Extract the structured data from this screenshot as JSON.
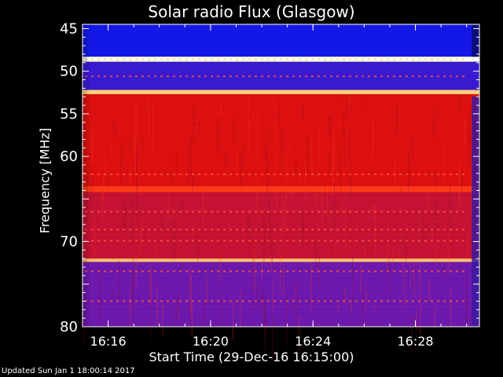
{
  "title": "Solar radio Flux (Glasgow)",
  "footer": "Updated Sun Jan  1 18:00:14 2017",
  "chart_data": {
    "type": "heatmap",
    "title": "Solar radio Flux (Glasgow)",
    "xlabel": "Start Time (29-Dec-16 16:15:00)",
    "ylabel": "Frequency [MHz]",
    "x_unit": "minutes after 16:15",
    "xlim": [
      0,
      15.5
    ],
    "ylim": [
      80,
      44.5
    ],
    "y_inverted": true,
    "x_ticks": [
      {
        "value": 1,
        "label": "16:16"
      },
      {
        "value": 5,
        "label": "16:20"
      },
      {
        "value": 9,
        "label": "16:24"
      },
      {
        "value": 13,
        "label": "16:28"
      }
    ],
    "y_ticks": [
      45,
      50,
      55,
      60,
      65,
      70,
      75,
      80
    ],
    "y_tick_labels": [
      "45",
      "50",
      "55",
      "60",
      "",
      "70",
      "",
      "80"
    ],
    "colormap": [
      "#00003a",
      "#1414e6",
      "#6e18b8",
      "#c81440",
      "#e61a0c",
      "#ff8a20",
      "#ffffa0"
    ],
    "bands": [
      {
        "from": 44.5,
        "to": 48.3,
        "color": "#1418e6",
        "label": "blue (low)"
      },
      {
        "from": 48.3,
        "to": 48.9,
        "color": "#fffff0",
        "label": "bright line"
      },
      {
        "from": 48.9,
        "to": 52.2,
        "color": "#3a1ad0",
        "label": "blue/purple"
      },
      {
        "from": 52.2,
        "to": 52.7,
        "color": "#ffd27a",
        "label": "bright line"
      },
      {
        "from": 52.7,
        "to": 63.5,
        "color": "#dc1010",
        "label": "red (high)"
      },
      {
        "from": 63.5,
        "to": 64.2,
        "color": "#ff3a1a",
        "label": "bright red"
      },
      {
        "from": 64.2,
        "to": 72.0,
        "color": "#c41234",
        "label": "red"
      },
      {
        "from": 72.0,
        "to": 72.4,
        "color": "#ffc070",
        "label": "bright line"
      },
      {
        "from": 72.4,
        "to": 80.0,
        "color": "#6a18b0",
        "label": "purple"
      }
    ],
    "features": [
      {
        "type": "dark_column",
        "x_from": 15.2,
        "x_to": 15.5
      }
    ]
  }
}
